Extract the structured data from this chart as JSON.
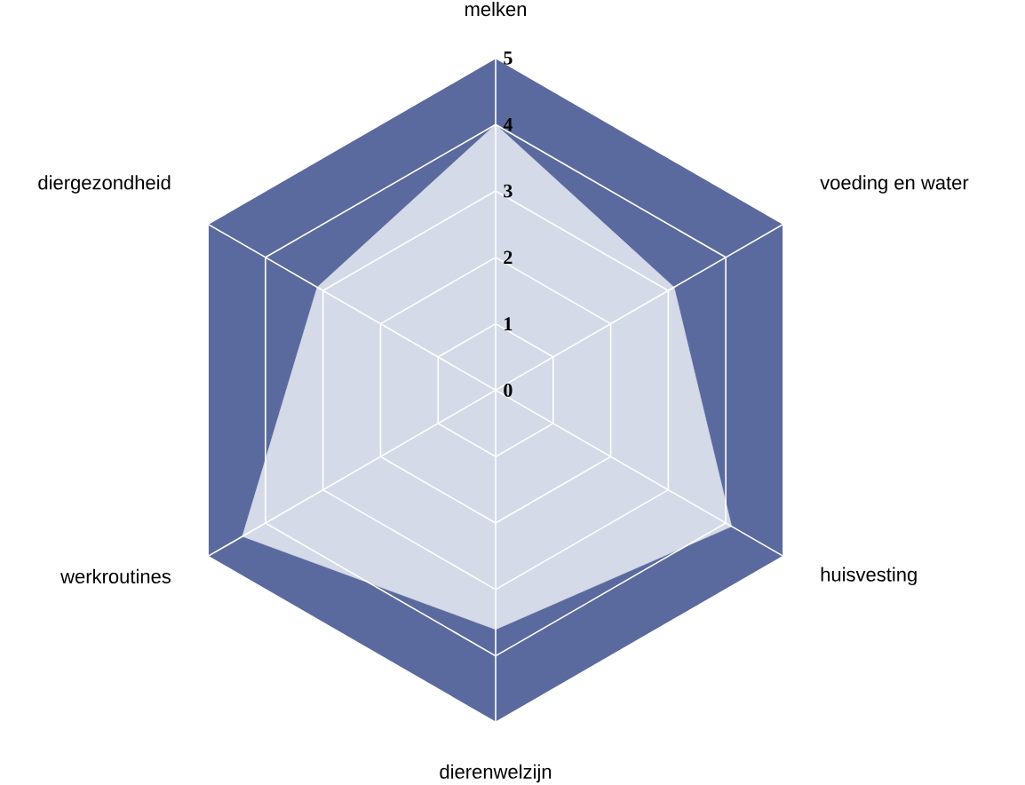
{
  "chart_data": {
    "type": "radar",
    "categories": [
      "melken",
      "voeding en water",
      "huisvesting",
      "dierenwelzijn",
      "werkroutines",
      "diergezondheid"
    ],
    "series": [
      {
        "color": "#d4dae8",
        "values": [
          4,
          3.1,
          4.1,
          3.6,
          4.4,
          3.1
        ]
      }
    ],
    "ylim": [
      0,
      5
    ],
    "yticks": [
      0,
      1,
      2,
      3,
      4,
      5
    ],
    "grid": true
  }
}
